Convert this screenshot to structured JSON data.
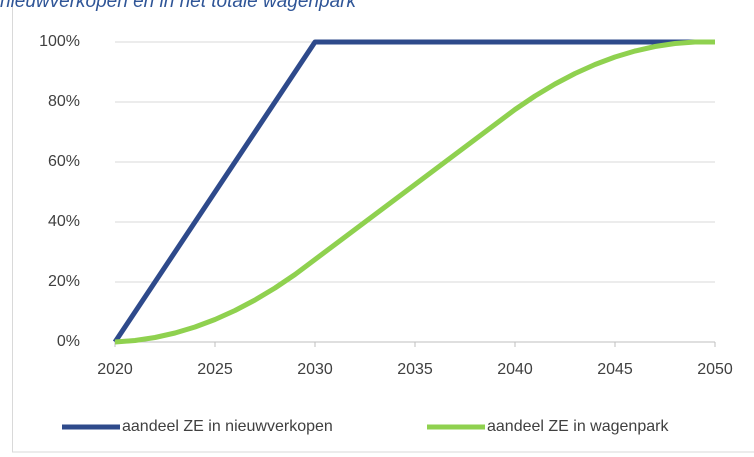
{
  "chart_data": {
    "type": "line",
    "title": "nieuwverkopen en in het totale wagenpark",
    "x": [
      2020,
      2021,
      2022,
      2023,
      2024,
      2025,
      2026,
      2027,
      2028,
      2029,
      2030,
      2031,
      2032,
      2033,
      2034,
      2035,
      2036,
      2037,
      2038,
      2039,
      2040,
      2041,
      2042,
      2043,
      2044,
      2045,
      2046,
      2047,
      2048,
      2049,
      2050
    ],
    "series": [
      {
        "name": "aandeel ZE in nieuwverkopen",
        "color": "#2e4a8b",
        "values": [
          0,
          10,
          20,
          30,
          40,
          50,
          60,
          70,
          80,
          90,
          100,
          100,
          100,
          100,
          100,
          100,
          100,
          100,
          100,
          100,
          100,
          100,
          100,
          100,
          100,
          100,
          100,
          100,
          100,
          100,
          100
        ]
      },
      {
        "name": "aandeel ZE in wagenpark",
        "color": "#8fd14f",
        "values": [
          0,
          0.5,
          1.5,
          3,
          5,
          7.5,
          10.5,
          14,
          18,
          22.5,
          27.5,
          32.5,
          37.5,
          42.5,
          47.5,
          52.5,
          57.5,
          62.5,
          67.5,
          72.5,
          77.5,
          82,
          86,
          89.5,
          92.5,
          95,
          97,
          98.5,
          99.5,
          100,
          100
        ]
      }
    ],
    "xlim": [
      2020,
      2050
    ],
    "xticks": [
      2020,
      2025,
      2030,
      2035,
      2040,
      2045,
      2050
    ],
    "ylim": [
      0,
      100
    ],
    "yticks": [
      {
        "value": 0,
        "label": "0%"
      },
      {
        "value": 20,
        "label": "20%"
      },
      {
        "value": 40,
        "label": "40%"
      },
      {
        "value": 60,
        "label": "60%"
      },
      {
        "value": 80,
        "label": "80%"
      },
      {
        "value": 100,
        "label": "100%"
      }
    ],
    "grid": true,
    "legend": "bottom"
  }
}
